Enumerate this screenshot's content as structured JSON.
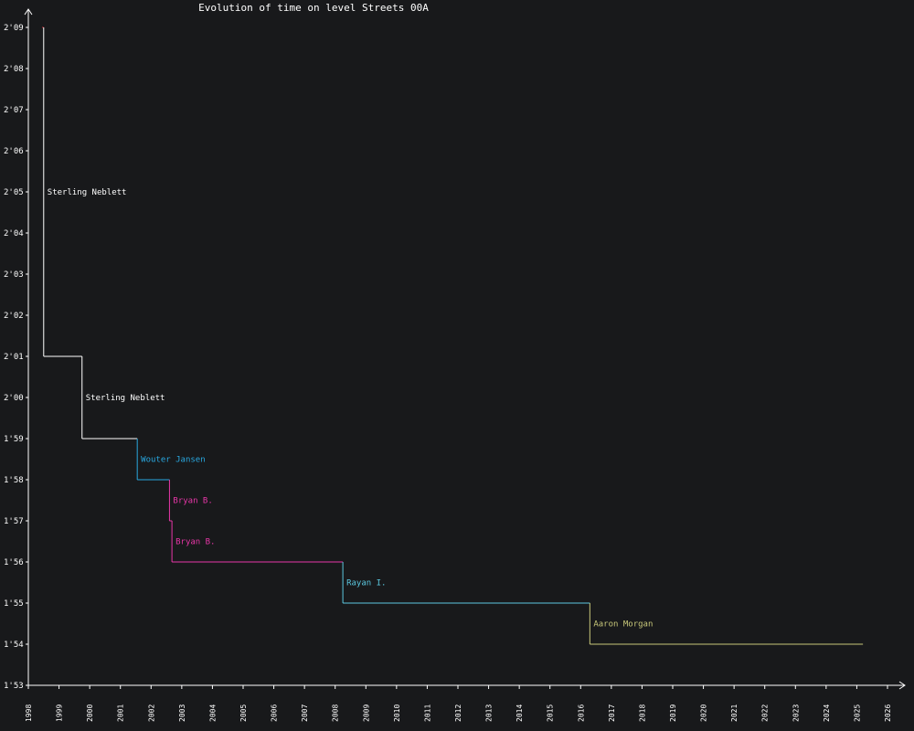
{
  "chart_data": {
    "type": "line",
    "title": "Evolution of time on level Streets 00A",
    "xlabel": "",
    "ylabel": "",
    "y_unit": "seconds",
    "xlim": [
      1998,
      2026
    ],
    "ylim": [
      113,
      129
    ],
    "x_ticks": [
      "1998",
      "1999",
      "2000",
      "2001",
      "2002",
      "2003",
      "2004",
      "2005",
      "2006",
      "2007",
      "2008",
      "2009",
      "2010",
      "2011",
      "2012",
      "2013",
      "2014",
      "2015",
      "2016",
      "2017",
      "2018",
      "2019",
      "2020",
      "2021",
      "2022",
      "2023",
      "2024",
      "2025",
      "2026"
    ],
    "y_ticks": [
      {
        "value": 113,
        "label": "1'53"
      },
      {
        "value": 114,
        "label": "1'54"
      },
      {
        "value": 115,
        "label": "1'55"
      },
      {
        "value": 116,
        "label": "1'56"
      },
      {
        "value": 117,
        "label": "1'57"
      },
      {
        "value": 118,
        "label": "1'58"
      },
      {
        "value": 119,
        "label": "1'59"
      },
      {
        "value": 120,
        "label": "2'00"
      },
      {
        "value": 121,
        "label": "2'01"
      },
      {
        "value": 122,
        "label": "2'02"
      },
      {
        "value": 123,
        "label": "2'03"
      },
      {
        "value": 124,
        "label": "2'04"
      },
      {
        "value": 125,
        "label": "2'05"
      },
      {
        "value": 126,
        "label": "2'06"
      },
      {
        "value": 127,
        "label": "2'07"
      },
      {
        "value": 128,
        "label": "2'08"
      },
      {
        "value": 129,
        "label": "2'09"
      }
    ],
    "series": [
      {
        "name": "",
        "color": "#e0343c",
        "start": 1998.45,
        "end": 1998.5,
        "y": 129
      },
      {
        "name": "Sterling Neblett",
        "color": "#ffffff",
        "start": 1998.5,
        "end": 1999.75,
        "y": 121
      },
      {
        "name": "Sterling Neblett",
        "color": "#ffffff",
        "start": 1999.75,
        "end": 2001.55,
        "y": 119
      },
      {
        "name": "Wouter Jansen",
        "color": "#29a8e0",
        "start": 2001.55,
        "end": 2002.6,
        "y": 118
      },
      {
        "name": "Bryan B.",
        "color": "#e836a8",
        "start": 2002.6,
        "end": 2002.68,
        "y": 117
      },
      {
        "name": "Bryan B.",
        "color": "#e836a8",
        "start": 2002.68,
        "end": 2008.25,
        "y": 116
      },
      {
        "name": "Rayan I.",
        "color": "#5bc8e0",
        "start": 2008.25,
        "end": 2016.3,
        "y": 115
      },
      {
        "name": "Aaron Morgan",
        "color": "#c8c87a",
        "start": 2016.3,
        "end": 2025.2,
        "y": 114
      }
    ]
  }
}
